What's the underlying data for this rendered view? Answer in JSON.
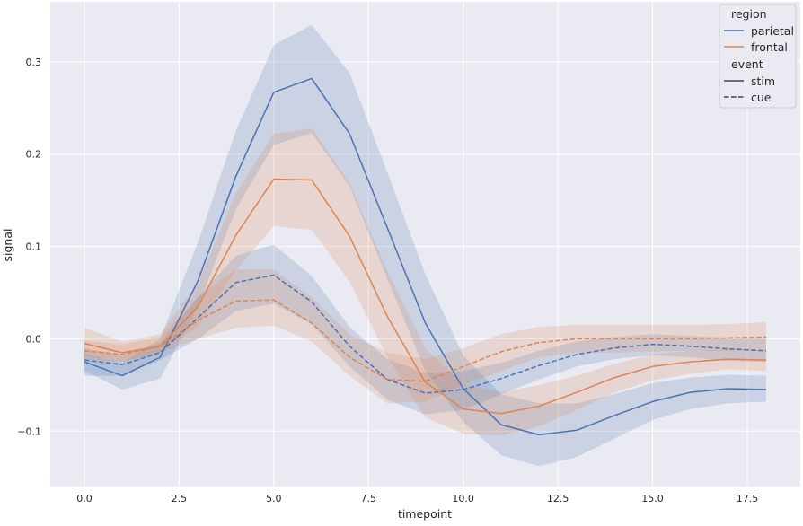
{
  "chart_data": {
    "type": "line",
    "xlabel": "timepoint",
    "ylabel": "signal",
    "xlim": [
      -0.9,
      18.9
    ],
    "ylim": [
      -0.16,
      0.365
    ],
    "xticks": [
      0.0,
      2.5,
      5.0,
      7.5,
      10.0,
      12.5,
      15.0,
      17.5
    ],
    "xtick_labels": [
      "0.0",
      "2.5",
      "5.0",
      "7.5",
      "10.0",
      "12.5",
      "15.0",
      "17.5"
    ],
    "yticks": [
      -0.1,
      0.0,
      0.1,
      0.2,
      0.3
    ],
    "ytick_labels": [
      "−0.1",
      "0.0",
      "0.1",
      "0.2",
      "0.3"
    ],
    "grid": true,
    "background": "#eaeaf2",
    "legend_position": "top-right",
    "legend": {
      "hue_title": "region",
      "hue_entries": [
        {
          "label": "parietal",
          "color": "#4c72b0"
        },
        {
          "label": "frontal",
          "color": "#dd8452"
        }
      ],
      "style_title": "event",
      "style_entries": [
        {
          "label": "stim",
          "dash": "solid"
        },
        {
          "label": "cue",
          "dash": "dashed"
        }
      ]
    },
    "x": [
      0,
      1,
      2,
      3,
      4,
      5,
      6,
      7,
      8,
      9,
      10,
      11,
      12,
      13,
      14,
      15,
      16,
      17,
      18
    ],
    "series": [
      {
        "region": "parietal",
        "event": "stim",
        "color": "#4c72b0",
        "dash": "solid",
        "values": [
          -0.025,
          -0.04,
          -0.02,
          0.063,
          0.176,
          0.267,
          0.282,
          0.222,
          0.12,
          0.017,
          -0.054,
          -0.093,
          -0.104,
          -0.099,
          -0.083,
          -0.068,
          -0.058,
          -0.054,
          -0.055
        ],
        "lower": [
          -0.035,
          -0.055,
          -0.043,
          0.035,
          0.14,
          0.21,
          0.223,
          0.165,
          0.065,
          -0.035,
          -0.09,
          -0.126,
          -0.138,
          -0.128,
          -0.108,
          -0.088,
          -0.076,
          -0.07,
          -0.068
        ],
        "upper": [
          -0.016,
          -0.026,
          0.0,
          0.105,
          0.225,
          0.318,
          0.34,
          0.288,
          0.18,
          0.07,
          -0.018,
          -0.06,
          -0.07,
          -0.07,
          -0.06,
          -0.048,
          -0.042,
          -0.039,
          -0.04
        ]
      },
      {
        "region": "parietal",
        "event": "cue",
        "color": "#4c72b0",
        "dash": "dashed",
        "values": [
          -0.023,
          -0.028,
          -0.015,
          0.023,
          0.061,
          0.069,
          0.04,
          -0.008,
          -0.044,
          -0.059,
          -0.055,
          -0.043,
          -0.029,
          -0.017,
          -0.01,
          -0.006,
          -0.008,
          -0.011,
          -0.013
        ],
        "lower": [
          -0.04,
          -0.04,
          -0.023,
          0.0,
          0.03,
          0.038,
          0.016,
          -0.03,
          -0.066,
          -0.082,
          -0.077,
          -0.06,
          -0.044,
          -0.03,
          -0.022,
          -0.018,
          -0.02,
          -0.024,
          -0.025
        ],
        "upper": [
          -0.01,
          -0.018,
          -0.005,
          0.045,
          0.09,
          0.102,
          0.068,
          0.013,
          -0.022,
          -0.037,
          -0.035,
          -0.026,
          -0.013,
          -0.003,
          0.002,
          0.005,
          0.003,
          0.001,
          0.0
        ]
      },
      {
        "region": "frontal",
        "event": "stim",
        "color": "#dd8452",
        "dash": "solid",
        "values": [
          -0.005,
          -0.015,
          -0.008,
          0.035,
          0.112,
          0.173,
          0.172,
          0.111,
          0.024,
          -0.047,
          -0.076,
          -0.081,
          -0.073,
          -0.058,
          -0.042,
          -0.03,
          -0.025,
          -0.022,
          -0.023
        ],
        "lower": [
          -0.018,
          -0.025,
          -0.015,
          0.014,
          0.074,
          0.122,
          0.118,
          0.062,
          -0.02,
          -0.085,
          -0.103,
          -0.105,
          -0.095,
          -0.077,
          -0.058,
          -0.045,
          -0.038,
          -0.033,
          -0.035
        ],
        "upper": [
          0.012,
          -0.003,
          0.005,
          0.06,
          0.158,
          0.222,
          0.228,
          0.168,
          0.073,
          -0.01,
          -0.05,
          -0.058,
          -0.05,
          -0.04,
          -0.027,
          -0.017,
          -0.013,
          -0.011,
          -0.012
        ]
      },
      {
        "region": "frontal",
        "event": "cue",
        "color": "#dd8452",
        "dash": "dashed",
        "values": [
          -0.013,
          -0.017,
          -0.008,
          0.02,
          0.041,
          0.042,
          0.017,
          -0.02,
          -0.044,
          -0.046,
          -0.03,
          -0.014,
          -0.004,
          0.0,
          0.0,
          0.0,
          0.0,
          0.001,
          0.002
        ],
        "lower": [
          -0.023,
          -0.025,
          -0.015,
          0.0,
          0.012,
          0.014,
          -0.003,
          -0.04,
          -0.07,
          -0.068,
          -0.05,
          -0.035,
          -0.02,
          -0.015,
          -0.015,
          -0.014,
          -0.013,
          -0.013,
          -0.013
        ],
        "upper": [
          -0.002,
          -0.006,
          0.002,
          0.045,
          0.075,
          0.075,
          0.045,
          0.005,
          -0.015,
          -0.022,
          -0.01,
          0.005,
          0.013,
          0.015,
          0.015,
          0.015,
          0.015,
          0.016,
          0.018
        ]
      }
    ]
  }
}
